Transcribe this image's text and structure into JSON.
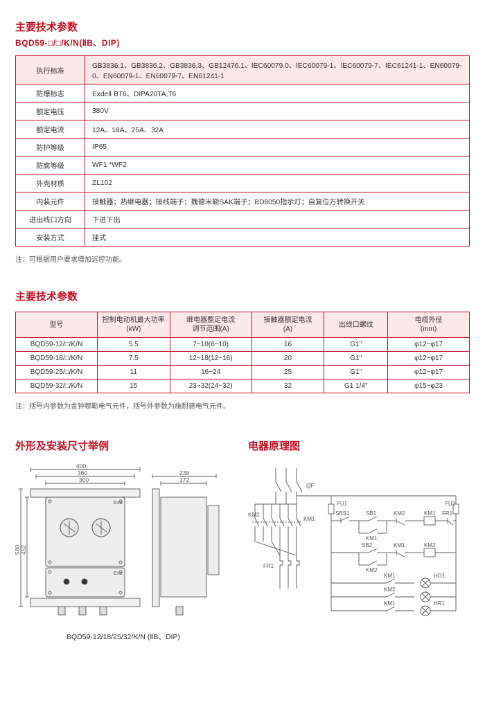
{
  "colors": {
    "primary": "#c30d23",
    "headerBg": "#fde8ea",
    "text": "#333333",
    "line": "#555555"
  },
  "section1": {
    "title": "主要技术参数",
    "subtitle": "BQD59-□/□/K/N(ⅡB、DIP)",
    "rows": [
      {
        "label": "执行标准",
        "value": "GB3836.1、GB3836.2、GB3836.3、GB12476.1、IEC60079.0、IEC60079-1、IEC60079-7、IEC61241-1、EN60079-0、EN60079-1、EN60079-7、EN61241-1"
      },
      {
        "label": "防爆标志",
        "value": "ExdeⅡ BT6、DIPA20TA,T6"
      },
      {
        "label": "额定电压",
        "value": "380V"
      },
      {
        "label": "额定电流",
        "value": "12A、18A、25A、32A"
      },
      {
        "label": "防护等级",
        "value": " IP65"
      },
      {
        "label": "防腐等级",
        "value": "WF1        *WF2"
      },
      {
        "label": "外壳材质",
        "value": "ZL102"
      },
      {
        "label": "内装元件",
        "value": "接触器；热继电器；接线端子；魏德米勒SAK端子；BD8050指示灯；自复位万转换开关"
      },
      {
        "label": "进出线口方向",
        "value": "下进下出"
      },
      {
        "label": "安装方式",
        "value": "挂式"
      }
    ],
    "note": "注：可根据用户要求增加远控功能。"
  },
  "section2": {
    "title": "主要技术参数",
    "headers": [
      "型号",
      "控制电动机最大功率\n(kW)",
      "继电器整定电流\n调节范围(A)",
      "接触器额定电流\n(A)",
      "出线口螺纹",
      "电缆外径\n(mm)"
    ],
    "colWidths": [
      "18%",
      "16%",
      "18%",
      "16%",
      "14%",
      "18%"
    ],
    "rows": [
      [
        "BQD59-12/□/K/N",
        "5.5",
        "7~10(6~10)",
        "16",
        "G1\"",
        "φ12~φ17"
      ],
      [
        "BQD59-18/□/K/N",
        "7.5",
        "12~18(12~16)",
        "20",
        "G1\"",
        "φ12~φ17"
      ],
      [
        "BQD59-25/□/K/N",
        "11",
        "16~24",
        "25",
        "G1\"",
        "φ12~φ17"
      ],
      [
        "BQD59-32/□/K/N",
        "15",
        "23~32(24~32)",
        "32",
        "G1 1/4\"",
        "φ15~φ23"
      ]
    ],
    "note": "注：括号内参数为金钟穆勒电气元件，括号外参数为施耐德电气元件。"
  },
  "dimensions": {
    "title": "外形及安装尺寸举例",
    "labels": {
      "w400": "400",
      "w360": "360",
      "w300": "300",
      "w238": "238",
      "w172": "172",
      "h580": "580",
      "h452": "452",
      "exd": "Exd",
      "exe": "Exe"
    },
    "caption": "BQD59-12/18/25/32/K/N (ⅡB、DIP)"
  },
  "circuit": {
    "title": "电器原理图",
    "labels": {
      "QF": "QF",
      "KM1": "KM1",
      "KM2": "KM2",
      "FR1": "FR1",
      "FU1": "FU1",
      "FU2": "FU2",
      "SBS1": "SBS1",
      "SB1": "SB1",
      "SB2": "SB2",
      "HG1": "HG1",
      "HR1": "HR1"
    }
  }
}
